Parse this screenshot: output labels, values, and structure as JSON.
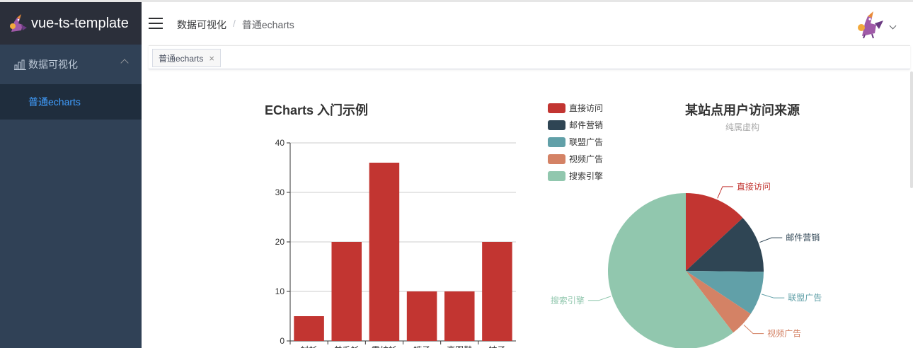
{
  "app": {
    "title": "vue-ts-template"
  },
  "sidebar": {
    "groups": [
      {
        "label": "数据可视化",
        "items": [
          {
            "label": "普通echarts",
            "active": true
          }
        ]
      }
    ]
  },
  "navbar": {
    "breadcrumb": [
      "数据可视化",
      "普通echarts"
    ]
  },
  "tags": [
    {
      "label": "普通echarts",
      "close": "×"
    }
  ],
  "colors": {
    "sidebar": "#304156",
    "active": "#409eff",
    "bar": "#c23531"
  },
  "chart_data": [
    {
      "type": "bar",
      "title": "ECharts 入门示例",
      "categories": [
        "衬衫",
        "羊毛衫",
        "雪纺衫",
        "裤子",
        "高跟鞋",
        "袜子"
      ],
      "values": [
        5,
        20,
        36,
        10,
        10,
        20
      ],
      "yticks": [
        "0",
        "10",
        "20",
        "30",
        "40"
      ],
      "ylim": [
        0,
        40
      ]
    },
    {
      "type": "pie",
      "title": "某站点用户访问来源",
      "subtitle": "纯属虚构",
      "legend": [
        "直接访问",
        "邮件营销",
        "联盟广告",
        "视频广告",
        "搜索引擎"
      ],
      "slices": [
        {
          "name": "直接访问",
          "value": 335,
          "color": "#c23531"
        },
        {
          "name": "邮件营销",
          "value": 310,
          "color": "#2f4554"
        },
        {
          "name": "联盟广告",
          "value": 234,
          "color": "#61a0a8"
        },
        {
          "name": "视频广告",
          "value": 135,
          "color": "#d48265"
        },
        {
          "name": "搜索引擎",
          "value": 1548,
          "color": "#91c7ae"
        }
      ]
    }
  ]
}
